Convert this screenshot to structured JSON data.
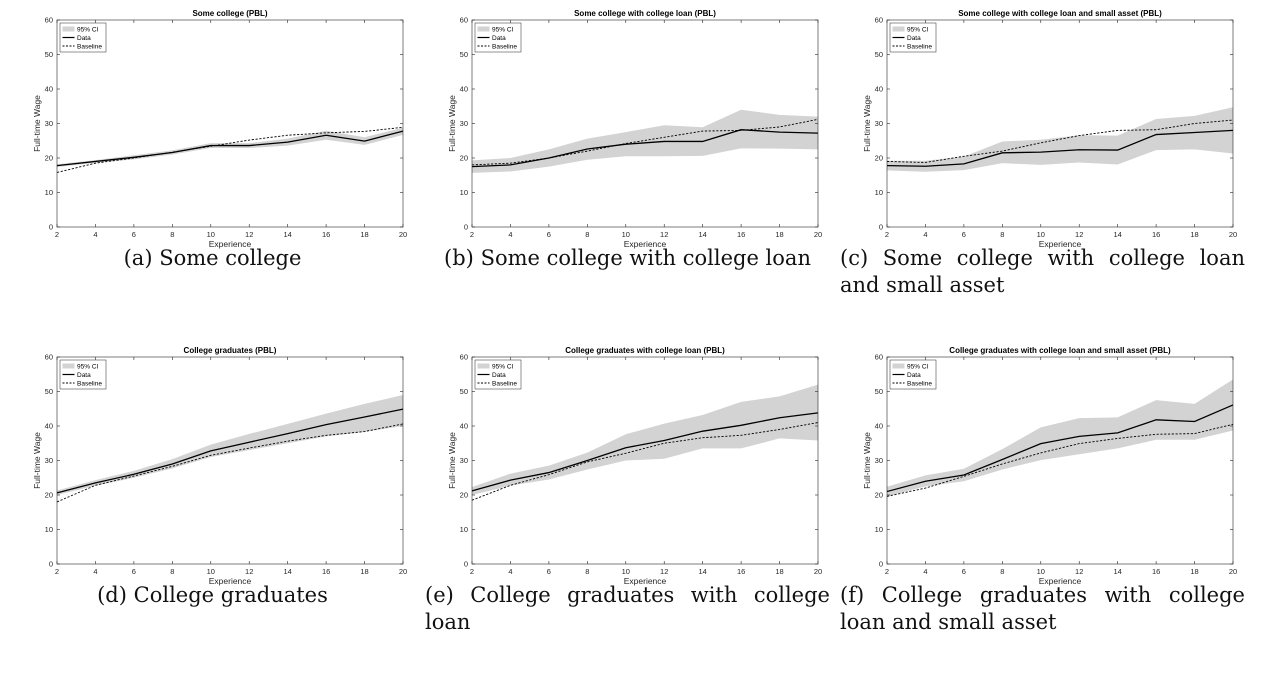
{
  "axis_common": {
    "xlabel": "Experience",
    "ylabel": "Full-time Wage",
    "xlim": [
      2,
      20
    ],
    "ylim": [
      0,
      60
    ],
    "xticks": [
      2,
      4,
      6,
      8,
      10,
      12,
      14,
      16,
      18,
      20
    ],
    "yticks": [
      0,
      10,
      20,
      30,
      40,
      50,
      60
    ],
    "legend": [
      "95% CI",
      "Data",
      "Baseline"
    ],
    "legend_placement": "top-left",
    "colors": {
      "ci": "#d3d3d3",
      "data": "#000000",
      "baseline": "#000000"
    }
  },
  "captions": [
    {
      "label": "(a)",
      "text": "Some college"
    },
    {
      "label": "(b)",
      "text": "Some college with college loan"
    },
    {
      "label": "(c)",
      "text": "Some college with college loan and small asset"
    },
    {
      "label": "(d)",
      "text": "College graduates"
    },
    {
      "label": "(e)",
      "text": "College graduates with college loan"
    },
    {
      "label": "(f)",
      "text": "College graduates with college loan and small asset"
    }
  ],
  "chart_data": [
    {
      "type": "line",
      "title": "Some college (PBL)",
      "x": [
        2,
        4,
        6,
        8,
        10,
        12,
        14,
        16,
        18,
        20
      ],
      "series": [
        {
          "name": "Data",
          "values": [
            17.8,
            19.0,
            20.2,
            21.6,
            23.6,
            23.6,
            24.6,
            26.6,
            24.9,
            27.8
          ]
        },
        {
          "name": "Baseline",
          "values": [
            15.8,
            18.5,
            20.0,
            21.7,
            23.4,
            25.2,
            26.6,
            27.3,
            27.7,
            28.9
          ]
        }
      ],
      "ci": {
        "name": "95% CI",
        "lower": [
          17.4,
          18.6,
          19.6,
          21.0,
          22.9,
          22.9,
          23.6,
          25.3,
          23.8,
          26.7
        ],
        "upper": [
          18.2,
          19.4,
          20.8,
          22.2,
          24.3,
          24.3,
          25.6,
          27.9,
          26.0,
          28.8
        ]
      }
    },
    {
      "type": "line",
      "title": "Some college with college loan (PBL)",
      "x": [
        2,
        4,
        6,
        8,
        10,
        12,
        14,
        16,
        18,
        20
      ],
      "series": [
        {
          "name": "Data",
          "values": [
            17.5,
            18.0,
            20.0,
            22.6,
            24.0,
            24.8,
            24.8,
            28.2,
            27.5,
            27.2
          ]
        },
        {
          "name": "Baseline",
          "values": [
            18.0,
            18.5,
            20.0,
            22.0,
            24.2,
            26.0,
            27.8,
            28.0,
            29.0,
            31.2
          ]
        }
      ],
      "ci": {
        "name": "95% CI",
        "lower": [
          15.7,
          16.1,
          17.5,
          19.5,
          20.5,
          20.5,
          20.6,
          22.8,
          22.7,
          22.5
        ],
        "upper": [
          19.3,
          20.0,
          22.5,
          25.6,
          27.5,
          29.5,
          28.9,
          34.0,
          32.5,
          32.0
        ]
      }
    },
    {
      "type": "line",
      "title": "Some college with college loan and small asset (PBL)",
      "x": [
        2,
        4,
        6,
        8,
        10,
        12,
        14,
        16,
        18,
        20
      ],
      "series": [
        {
          "name": "Data",
          "values": [
            17.8,
            17.6,
            18.3,
            21.5,
            21.7,
            22.4,
            22.3,
            26.8,
            27.4,
            28.0
          ]
        },
        {
          "name": "Baseline",
          "values": [
            19.0,
            18.7,
            20.5,
            22.0,
            24.4,
            26.5,
            28.0,
            28.2,
            30.0,
            31.0
          ]
        }
      ],
      "ci": {
        "name": "95% CI",
        "lower": [
          16.4,
          16.0,
          16.5,
          18.5,
          18.0,
          18.7,
          18.1,
          22.3,
          22.5,
          21.3
        ],
        "upper": [
          19.2,
          19.2,
          20.4,
          24.8,
          25.3,
          26.6,
          26.5,
          31.3,
          32.2,
          34.7
        ]
      }
    },
    {
      "type": "line",
      "title": "College graduates (PBL)",
      "x": [
        2,
        4,
        6,
        8,
        10,
        12,
        14,
        16,
        18,
        20
      ],
      "series": [
        {
          "name": "Data",
          "values": [
            20.6,
            23.5,
            26.0,
            29.0,
            32.8,
            35.3,
            37.8,
            40.4,
            42.6,
            44.9
          ]
        },
        {
          "name": "Baseline",
          "values": [
            18.0,
            22.8,
            25.5,
            28.3,
            31.5,
            33.6,
            35.6,
            37.3,
            38.4,
            40.6
          ]
        }
      ],
      "ci": {
        "name": "95% CI",
        "lower": [
          20.0,
          22.7,
          25.0,
          27.7,
          31.0,
          33.0,
          35.0,
          37.0,
          38.3,
          40.0
        ],
        "upper": [
          21.3,
          24.3,
          27.0,
          30.4,
          34.6,
          37.7,
          40.6,
          43.6,
          46.4,
          49.0
        ]
      }
    },
    {
      "type": "line",
      "title": "College graduates with college loan (PBL)",
      "x": [
        2,
        4,
        6,
        8,
        10,
        12,
        14,
        16,
        18,
        20
      ],
      "series": [
        {
          "name": "Data",
          "values": [
            21.2,
            24.3,
            26.5,
            30.0,
            33.7,
            35.8,
            38.5,
            40.2,
            42.4,
            43.8
          ]
        },
        {
          "name": "Baseline",
          "values": [
            18.5,
            22.8,
            25.9,
            29.6,
            32.1,
            35.0,
            36.6,
            37.3,
            39.0,
            41.0
          ]
        }
      ],
      "ci": {
        "name": "95% CI",
        "lower": [
          20.0,
          22.7,
          24.5,
          27.4,
          30.0,
          30.5,
          33.5,
          33.5,
          36.4,
          35.8
        ],
        "upper": [
          22.3,
          26.2,
          28.5,
          32.3,
          37.6,
          40.7,
          43.2,
          47.0,
          48.6,
          52.0
        ]
      }
    },
    {
      "type": "line",
      "title": "College graduates with college loan and small asset (PBL)",
      "x": [
        2,
        4,
        6,
        8,
        10,
        12,
        14,
        16,
        18,
        20
      ],
      "series": [
        {
          "name": "Data",
          "values": [
            21.0,
            24.0,
            25.8,
            30.3,
            34.9,
            37.0,
            38.0,
            41.8,
            41.3,
            46.1
          ]
        },
        {
          "name": "Baseline",
          "values": [
            19.6,
            22.0,
            25.4,
            29.0,
            32.2,
            34.9,
            36.4,
            37.6,
            37.8,
            40.5
          ]
        }
      ],
      "ci": {
        "name": "95% CI",
        "lower": [
          19.6,
          22.5,
          24.0,
          27.4,
          30.1,
          31.8,
          33.5,
          36.0,
          36.0,
          38.7
        ],
        "upper": [
          22.4,
          25.7,
          27.6,
          33.3,
          39.6,
          42.3,
          42.5,
          47.5,
          46.4,
          53.5
        ]
      }
    }
  ]
}
